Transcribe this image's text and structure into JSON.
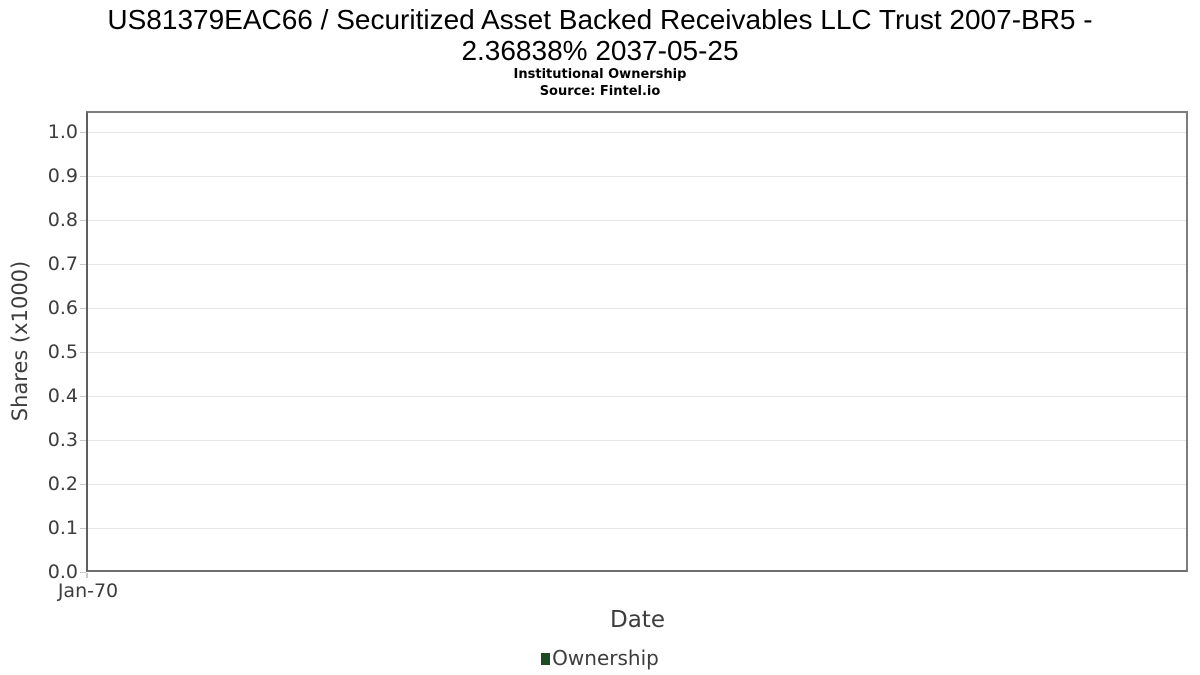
{
  "header": {
    "title_line1": "US81379EAC66 / Securitized Asset Backed Receivables LLC Trust 2007-BR5 -",
    "title_line2": "2.36838% 2037-05-25",
    "subtitle": "Institutional Ownership",
    "source": "Source: Fintel.io"
  },
  "chart_data": {
    "type": "line",
    "title": "US81379EAC66 / Securitized Asset Backed Receivables LLC Trust 2007-BR5 - 2.36838% 2037-05-25",
    "subtitle": "Institutional Ownership",
    "source": "Source: Fintel.io",
    "xlabel": "Date",
    "ylabel": "Shares (x1000)",
    "x_ticks": [
      "Jan-70"
    ],
    "y_ticks": [
      "1.0",
      "0.9",
      "0.8",
      "0.7",
      "0.6",
      "0.5",
      "0.4",
      "0.3",
      "0.2",
      "0.1",
      "0.0"
    ],
    "ylim": [
      0.0,
      1.0
    ],
    "grid": true,
    "legend_position": "bottom",
    "series": [
      {
        "name": "Ownership",
        "color": "#1e4a26",
        "x": [],
        "values": []
      }
    ]
  },
  "legend": {
    "items": [
      {
        "label": "Ownership",
        "color": "#1e4a26"
      }
    ]
  },
  "colors": {
    "gridline": "#e6e6e6",
    "plot_border": "#7d7d7d",
    "tick_text": "#3d3d3d",
    "title_text": "#000000",
    "legend_swatch": "#1e4a26"
  }
}
